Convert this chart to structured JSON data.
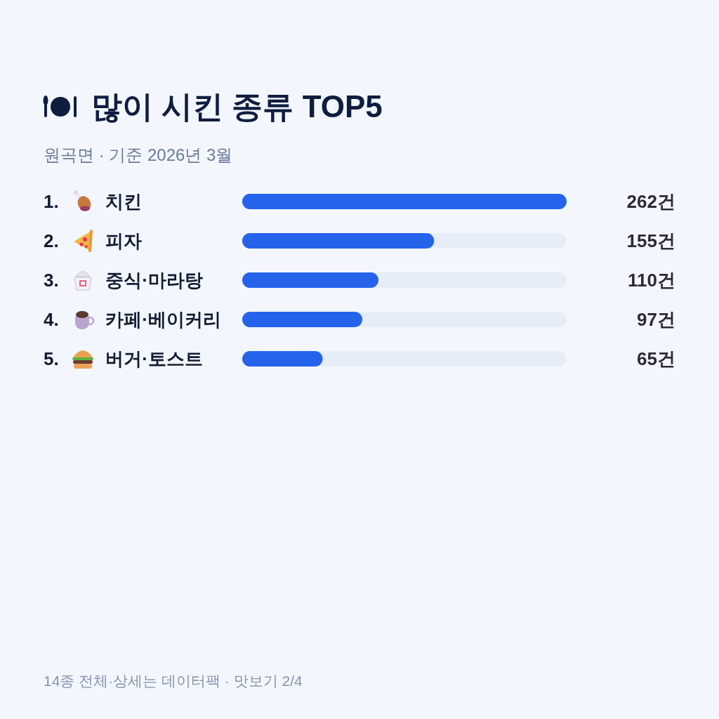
{
  "chart_data": {
    "type": "bar",
    "orientation": "horizontal",
    "title": "많이 시킨 종류 TOP5",
    "subtitle": "원곡면 · 기준 2026년 3월",
    "categories": [
      "1. 치킨",
      "2. 피자",
      "3. 중식·마라탕",
      "4. 카페·베이커리",
      "5. 버거·토스트"
    ],
    "values": [
      262,
      155,
      110,
      97,
      65
    ],
    "color": "#2563eb",
    "value_labels": [
      "262건",
      "155건",
      "110건",
      "97건",
      "65건"
    ],
    "annotations": [
      "14종 전체·상세는 데이터팩 · 맛보기 2/4"
    ]
  }
}
